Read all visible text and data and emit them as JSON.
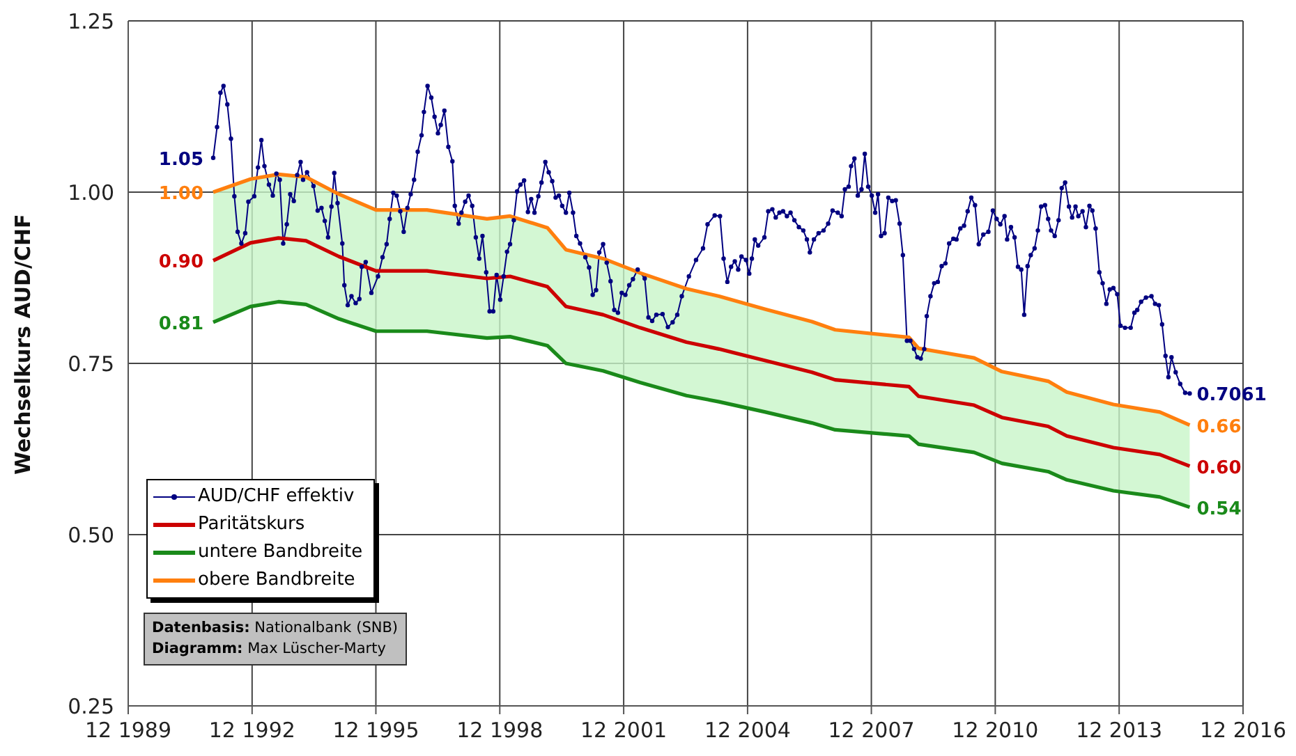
{
  "chart_data": {
    "type": "line",
    "ylabel": "Wechselkurs AUD/CHF",
    "xlim": [
      "1989-12",
      "2016-12"
    ],
    "xticks": [
      {
        "value": "1989-12",
        "label": "12 1989"
      },
      {
        "value": "1992-12",
        "label": "12 1992"
      },
      {
        "value": "1995-12",
        "label": "12 1995"
      },
      {
        "value": "1998-12",
        "label": "12 1998"
      },
      {
        "value": "2001-12",
        "label": "12 2001"
      },
      {
        "value": "2004-12",
        "label": "12 2004"
      },
      {
        "value": "2007-12",
        "label": "12 2007"
      },
      {
        "value": "2010-12",
        "label": "12 2010"
      },
      {
        "value": "2013-12",
        "label": "12 2013"
      },
      {
        "value": "2016-12",
        "label": "12 2016"
      }
    ],
    "ylim": [
      0.25,
      1.25
    ],
    "yticks": [
      0.25,
      {
        "value": 0.5,
        "label": "0.50"
      },
      0.75,
      {
        "value": 1.0,
        "label": "1.00"
      },
      1.25
    ],
    "grid": true,
    "legend": "bottom left",
    "annotations": [
      "Datenbasis: Nationalbank (SNB)",
      "Diagramm: Max Lüscher-Marty"
    ],
    "series": [
      {
        "name": "AUD/CHF effektiv",
        "color": "#000080",
        "marker": "circle",
        "x": [
          "1991-12-23",
          "1992-01-26",
          "1992-02-25",
          "1992-03-23",
          "1992-04-26",
          "1992-05-28",
          "1992-06-27",
          "1992-07-26",
          "1992-08-28",
          "1992-10-01",
          "1992-10-29",
          "1992-12-20",
          "1993-01-22",
          "1993-02-21",
          "1993-03-20",
          "1993-04-29",
          "1993-06-02",
          "1993-07-04",
          "1993-08-03",
          "1993-09-02",
          "1993-10-04",
          "1993-11-03",
          "1993-12-05",
          "1994-01-04",
          "1994-02-03",
          "1994-02-25",
          "1994-04-01",
          "1994-05-28",
          "1994-07-04",
          "1994-08-07",
          "1994-09-05",
          "1994-10-04",
          "1994-11-03",
          "1994-11-28",
          "1994-12-27",
          "1995-02-07",
          "1995-02-25",
          "1995-03-27",
          "1995-04-29",
          "1995-06-05",
          "1995-07-08",
          "1995-07-29",
          "1995-09-02",
          "1995-10-22",
          "1995-12-20",
          "1996-01-29",
          "1996-03-05",
          "1996-04-01",
          "1996-05-03",
          "1996-06-02",
          "1996-07-04",
          "1996-08-03",
          "1996-09-05",
          "1996-10-04",
          "1996-11-03",
          "1996-12-05",
          "1997-01-08",
          "1997-01-29",
          "1997-03-02",
          "1997-04-04",
          "1997-05-03",
          "1997-06-02",
          "1997-06-27",
          "1997-07-29",
          "1997-09-02",
          "1997-10-08",
          "1997-10-29",
          "1997-12-02",
          "1997-12-27",
          "1998-01-29",
          "1998-02-28",
          "1998-04-01",
          "1998-05-03",
          "1998-06-02",
          "1998-07-01",
          "1998-08-03",
          "1998-09-02",
          "1998-10-04",
          "1998-11-03",
          "1998-12-05",
          "1999-01-04",
          "1999-02-03",
          "1999-03-02",
          "1999-04-04",
          "1999-05-03",
          "1999-06-02",
          "1999-07-04",
          "1999-08-07",
          "1999-09-05",
          "1999-10-04",
          "1999-11-07",
          "1999-12-05",
          "2000-01-08",
          "2000-02-07",
          "2000-03-09",
          "2000-04-08",
          "2000-05-07",
          "2000-06-05",
          "2000-07-08",
          "2000-08-07",
          "2000-09-09",
          "2000-10-08",
          "2000-11-10",
          "2000-12-27",
          "2001-01-29",
          "2001-03-02",
          "2001-04-01",
          "2001-04-29",
          "2001-06-02",
          "2001-07-04",
          "2001-08-07",
          "2001-09-09",
          "2001-10-11",
          "2001-11-14",
          "2001-12-16",
          "2002-01-19",
          "2002-02-21",
          "2002-04-04",
          "2002-06-05",
          "2002-07-08",
          "2002-08-10",
          "2002-09-16",
          "2002-11-10",
          "2002-12-27",
          "2003-02-07",
          "2003-03-20",
          "2003-04-29",
          "2003-07-01",
          "2003-09-02",
          "2003-11-03",
          "2003-12-13",
          "2004-02-14",
          "2004-04-01",
          "2004-05-03",
          "2004-06-05",
          "2004-07-08",
          "2004-08-10",
          "2004-09-09",
          "2004-10-08",
          "2004-11-17",
          "2004-12-16",
          "2005-01-08",
          "2005-02-03",
          "2005-03-05",
          "2005-04-29",
          "2005-06-02",
          "2005-07-08",
          "2005-08-07",
          "2005-09-09",
          "2005-10-11",
          "2005-11-14",
          "2005-12-16",
          "2006-01-19",
          "2006-02-28",
          "2006-04-08",
          "2006-05-10",
          "2006-06-05",
          "2006-07-11",
          "2006-08-21",
          "2006-10-04",
          "2006-11-14",
          "2006-12-23",
          "2007-02-07",
          "2007-03-13",
          "2007-04-11",
          "2007-05-14",
          "2007-06-05",
          "2007-07-04",
          "2007-08-03",
          "2007-09-05",
          "2007-10-04",
          "2007-11-03",
          "2007-12-05",
          "2008-01-04",
          "2008-01-29",
          "2008-02-25",
          "2008-03-27",
          "2008-04-29",
          "2008-06-02",
          "2008-07-04",
          "2008-08-07",
          "2008-09-05",
          "2008-10-11",
          "2008-11-10",
          "2008-12-13",
          "2009-01-11",
          "2009-02-10",
          "2009-03-13",
          "2009-04-04",
          "2009-05-07",
          "2009-06-09",
          "2009-07-11",
          "2009-08-14",
          "2009-09-16",
          "2009-10-19",
          "2009-11-25",
          "2009-12-23",
          "2010-01-26",
          "2010-02-28",
          "2010-04-01",
          "2010-05-03",
          "2010-06-05",
          "2010-07-08",
          "2010-08-17",
          "2010-10-01",
          "2010-11-10",
          "2010-12-13",
          "2011-01-15",
          "2011-02-21",
          "2011-03-16",
          "2011-04-19",
          "2011-05-21",
          "2011-06-20",
          "2011-07-19",
          "2011-08-14",
          "2011-09-13",
          "2011-10-11",
          "2011-11-14",
          "2011-12-13",
          "2012-01-11",
          "2012-02-14",
          "2012-03-13",
          "2012-04-08",
          "2012-05-10",
          "2012-06-13",
          "2012-07-11",
          "2012-08-10",
          "2012-09-13",
          "2012-10-11",
          "2012-11-10",
          "2012-12-05",
          "2013-01-11",
          "2013-02-10",
          "2013-03-13",
          "2013-04-08",
          "2013-05-07",
          "2013-06-09",
          "2013-07-08",
          "2013-08-10",
          "2013-09-09",
          "2013-10-11",
          "2013-11-14",
          "2013-12-13",
          "2014-01-22",
          "2014-03-13",
          "2014-04-15",
          "2014-05-10",
          "2014-06-13",
          "2014-07-26",
          "2014-09-13",
          "2014-10-15",
          "2014-11-17",
          "2014-12-16",
          "2015-01-15",
          "2015-02-10",
          "2015-03-09",
          "2015-04-15",
          "2015-05-25",
          "2015-07-08",
          "2015-08-17"
        ],
        "values": [
          1.05,
          1.095,
          1.145,
          1.155,
          1.128,
          1.078,
          0.994,
          0.942,
          0.925,
          0.94,
          0.986,
          0.994,
          1.036,
          1.076,
          1.038,
          1.011,
          0.995,
          1.027,
          1.018,
          0.925,
          0.953,
          0.997,
          0.987,
          1.025,
          1.044,
          1.018,
          1.029,
          1.009,
          0.973,
          0.977,
          0.958,
          0.934,
          0.979,
          1.028,
          0.984,
          0.925,
          0.864,
          0.835,
          0.848,
          0.838,
          0.844,
          0.891,
          0.898,
          0.853,
          0.877,
          0.905,
          0.924,
          0.961,
          0.999,
          0.995,
          0.972,
          0.942,
          0.977,
          0.997,
          1.018,
          1.059,
          1.083,
          1.117,
          1.155,
          1.138,
          1.11,
          1.086,
          1.098,
          1.119,
          1.066,
          1.045,
          0.98,
          0.954,
          0.97,
          0.986,
          0.995,
          0.98,
          0.934,
          0.903,
          0.936,
          0.883,
          0.826,
          0.826,
          0.879,
          0.843,
          0.877,
          0.913,
          0.924,
          0.959,
          1.001,
          1.011,
          1.017,
          0.971,
          0.99,
          0.97,
          0.994,
          1.014,
          1.044,
          1.029,
          1.016,
          0.992,
          0.995,
          0.98,
          0.97,
          0.999,
          0.97,
          0.936,
          0.925,
          0.905,
          0.89,
          0.85,
          0.857,
          0.912,
          0.924,
          0.897,
          0.87,
          0.828,
          0.824,
          0.853,
          0.85,
          0.864,
          0.873,
          0.887,
          0.874,
          0.817,
          0.812,
          0.821,
          0.822,
          0.803,
          0.81,
          0.821,
          0.848,
          0.877,
          0.901,
          0.918,
          0.953,
          0.966,
          0.965,
          0.903,
          0.869,
          0.891,
          0.899,
          0.887,
          0.906,
          0.901,
          0.881,
          0.903,
          0.931,
          0.922,
          0.934,
          0.972,
          0.975,
          0.963,
          0.97,
          0.972,
          0.965,
          0.97,
          0.959,
          0.949,
          0.944,
          0.931,
          0.912,
          0.931,
          0.94,
          0.944,
          0.954,
          0.973,
          0.97,
          0.965,
          1.004,
          1.008,
          1.038,
          1.049,
          0.995,
          1.004,
          1.056,
          1.008,
          0.995,
          0.97,
          0.997,
          0.936,
          0.94,
          0.992,
          0.987,
          0.988,
          0.954,
          0.908,
          0.783,
          0.783,
          0.771,
          0.759,
          0.757,
          0.771,
          0.819,
          0.848,
          0.867,
          0.869,
          0.892,
          0.896,
          0.925,
          0.932,
          0.931,
          0.947,
          0.951,
          0.972,
          0.992,
          0.981,
          0.924,
          0.938,
          0.942,
          0.973,
          0.961,
          0.953,
          0.965,
          0.931,
          0.949,
          0.934,
          0.891,
          0.887,
          0.821,
          0.892,
          0.908,
          0.918,
          0.944,
          0.979,
          0.981,
          0.961,
          0.944,
          0.936,
          0.959,
          1.006,
          1.014,
          0.979,
          0.963,
          0.979,
          0.965,
          0.972,
          0.949,
          0.98,
          0.973,
          0.947,
          0.883,
          0.867,
          0.837,
          0.858,
          0.86,
          0.851,
          0.805,
          0.802,
          0.802,
          0.824,
          0.828,
          0.84,
          0.846,
          0.848,
          0.837,
          0.835,
          0.807,
          0.761,
          0.73,
          0.759,
          0.737,
          0.72,
          0.707,
          0.7061
        ],
        "value_labels": [
          "1.05",
          null,
          null,
          null,
          null,
          null,
          null,
          null,
          null,
          null,
          null,
          null,
          null,
          null,
          null,
          null,
          null,
          null,
          null,
          null,
          null,
          null,
          null,
          null,
          null,
          null,
          null,
          null,
          null,
          null,
          null,
          null,
          null,
          null,
          null,
          null,
          null,
          null,
          null,
          null,
          null,
          null,
          null,
          null,
          null,
          null,
          null,
          null,
          null,
          null,
          null,
          null,
          null,
          null,
          null,
          null,
          null,
          null,
          null,
          null,
          null,
          null,
          null,
          null,
          null,
          null,
          null,
          null,
          null,
          null,
          null,
          null,
          null,
          null,
          null,
          null,
          null,
          null,
          null,
          null,
          null,
          null,
          null,
          null,
          null,
          null,
          null,
          null,
          null,
          null,
          null,
          null,
          null,
          null,
          null,
          null,
          null,
          null,
          null,
          null,
          null,
          null,
          null,
          null,
          null,
          null,
          null,
          null,
          null,
          null,
          null,
          null,
          null,
          null,
          null,
          null,
          null,
          null,
          null,
          null,
          null,
          null,
          null,
          null,
          null,
          null,
          null,
          null,
          null,
          null,
          null,
          null,
          null,
          null,
          null,
          null,
          null,
          null,
          null,
          null,
          null,
          null,
          null,
          null,
          null,
          null,
          null,
          null,
          null,
          null,
          null,
          null,
          null,
          null,
          null,
          null,
          null,
          null,
          null,
          null,
          null,
          null,
          null,
          null,
          null,
          null,
          null,
          null,
          null,
          null,
          null,
          null,
          null,
          null,
          null,
          null,
          null,
          null,
          null,
          null,
          null,
          null,
          null,
          null,
          null,
          null,
          null,
          null,
          null,
          null,
          null,
          null,
          null,
          null,
          null,
          null,
          null,
          null,
          null,
          null,
          null,
          null,
          null,
          null,
          null,
          null,
          null,
          null,
          null,
          null,
          null,
          null,
          null,
          null,
          null,
          null,
          null,
          null,
          null,
          null,
          null,
          null,
          null,
          null,
          null,
          null,
          null,
          null,
          null,
          null,
          null,
          null,
          null,
          null,
          null,
          null,
          null,
          null,
          null,
          null,
          null,
          null,
          null,
          null,
          null,
          null,
          null,
          null,
          null,
          null,
          null,
          null,
          null,
          null,
          null,
          null,
          null,
          null,
          null,
          "0.7061"
        ]
      },
      {
        "name": "Paritätskurs",
        "color": "#cc0000",
        "x": [
          "1991-12-23",
          "1992-11-17",
          "1993-07-22",
          "1994-03-23",
          "1995-01-08",
          "1995-12-02",
          "1997-02-25",
          "1998-08-10",
          "1999-03-02",
          "2000-01-26",
          "2000-07-08",
          "2001-06-02",
          "2002-04-26",
          "2003-06-09",
          "2004-03-23",
          "2005-05-07",
          "2006-06-23",
          "2007-01-15",
          "2008-10-29",
          "2009-01-22",
          "2010-05-28",
          "2011-01-29",
          "2012-03-13",
          "2012-08-25",
          "2013-10-11",
          "2014-11-25",
          "2015-08-17"
        ],
        "values": [
          0.9,
          0.926,
          0.933,
          0.929,
          0.906,
          0.885,
          0.885,
          0.874,
          0.877,
          0.862,
          0.833,
          0.821,
          0.802,
          0.781,
          0.771,
          0.754,
          0.737,
          0.726,
          0.716,
          0.702,
          0.689,
          0.671,
          0.658,
          0.644,
          0.627,
          0.617,
          0.6
        ],
        "lower": [
          0.81,
          0.833,
          0.84,
          0.836,
          0.815,
          0.797,
          0.797,
          0.787,
          0.789,
          0.776,
          0.75,
          0.739,
          0.722,
          0.703,
          0.694,
          0.679,
          0.663,
          0.653,
          0.644,
          0.632,
          0.62,
          0.604,
          0.592,
          0.58,
          0.564,
          0.555,
          0.54
        ],
        "upper": [
          1.0,
          1.019,
          1.026,
          1.022,
          0.997,
          0.974,
          0.974,
          0.961,
          0.965,
          0.948,
          0.916,
          0.903,
          0.882,
          0.859,
          0.848,
          0.829,
          0.811,
          0.799,
          0.788,
          0.772,
          0.758,
          0.738,
          0.724,
          0.708,
          0.69,
          0.679,
          0.66
        ],
        "value_labels": [
          "0.90",
          null,
          null,
          null,
          null,
          null,
          null,
          null,
          null,
          null,
          null,
          null,
          null,
          null,
          null,
          null,
          null,
          null,
          null,
          null,
          null,
          null,
          null,
          null,
          null,
          null,
          "0.60"
        ]
      },
      {
        "name": "untere Bandbreite",
        "color": "#1a8a1a",
        "x": [
          "1991-12-23",
          "1992-11-17",
          "1993-07-22",
          "1994-03-23",
          "1995-01-08",
          "1995-12-02",
          "1997-02-25",
          "1998-08-10",
          "1999-03-02",
          "2000-01-26",
          "2000-07-08",
          "2001-06-02",
          "2002-04-26",
          "2003-06-09",
          "2004-03-23",
          "2005-05-07",
          "2006-06-23",
          "2007-01-15",
          "2008-10-29",
          "2009-01-22",
          "2010-05-28",
          "2011-01-29",
          "2012-03-13",
          "2012-08-25",
          "2013-10-11",
          "2014-11-25",
          "2015-08-17"
        ],
        "values": [
          0.81,
          0.833,
          0.84,
          0.836,
          0.815,
          0.797,
          0.797,
          0.787,
          0.789,
          0.776,
          0.75,
          0.739,
          0.722,
          0.703,
          0.694,
          0.679,
          0.663,
          0.653,
          0.644,
          0.632,
          0.62,
          0.604,
          0.592,
          0.58,
          0.564,
          0.555,
          0.54
        ],
        "value_labels": [
          "0.81",
          null,
          null,
          null,
          null,
          null,
          null,
          null,
          null,
          null,
          null,
          null,
          null,
          null,
          null,
          null,
          null,
          null,
          null,
          null,
          null,
          null,
          null,
          null,
          null,
          null,
          "0.54"
        ]
      },
      {
        "name": "obere Bandbreite",
        "color": "#ff7f0e",
        "x": [
          "1991-12-23",
          "1992-11-17",
          "1993-07-22",
          "1994-03-23",
          "1995-01-08",
          "1995-12-02",
          "1997-02-25",
          "1998-08-10",
          "1999-03-02",
          "2000-01-26",
          "2000-07-08",
          "2001-06-02",
          "2002-04-26",
          "2003-06-09",
          "2004-03-23",
          "2005-05-07",
          "2006-06-23",
          "2007-01-15",
          "2008-10-29",
          "2009-01-22",
          "2010-05-28",
          "2011-01-29",
          "2012-03-13",
          "2012-08-25",
          "2013-10-11",
          "2014-11-25",
          "2015-08-17"
        ],
        "values": [
          1.0,
          1.019,
          1.026,
          1.022,
          0.997,
          0.974,
          0.974,
          0.961,
          0.965,
          0.948,
          0.916,
          0.903,
          0.882,
          0.859,
          0.848,
          0.829,
          0.811,
          0.799,
          0.788,
          0.772,
          0.758,
          0.738,
          0.724,
          0.708,
          0.69,
          0.679,
          0.66
        ],
        "value_labels": [
          "1.00",
          null,
          null,
          null,
          null,
          null,
          null,
          null,
          null,
          null,
          null,
          null,
          null,
          null,
          null,
          null,
          null,
          null,
          null,
          null,
          null,
          null,
          null,
          null,
          null,
          null,
          "0.66"
        ]
      }
    ]
  }
}
